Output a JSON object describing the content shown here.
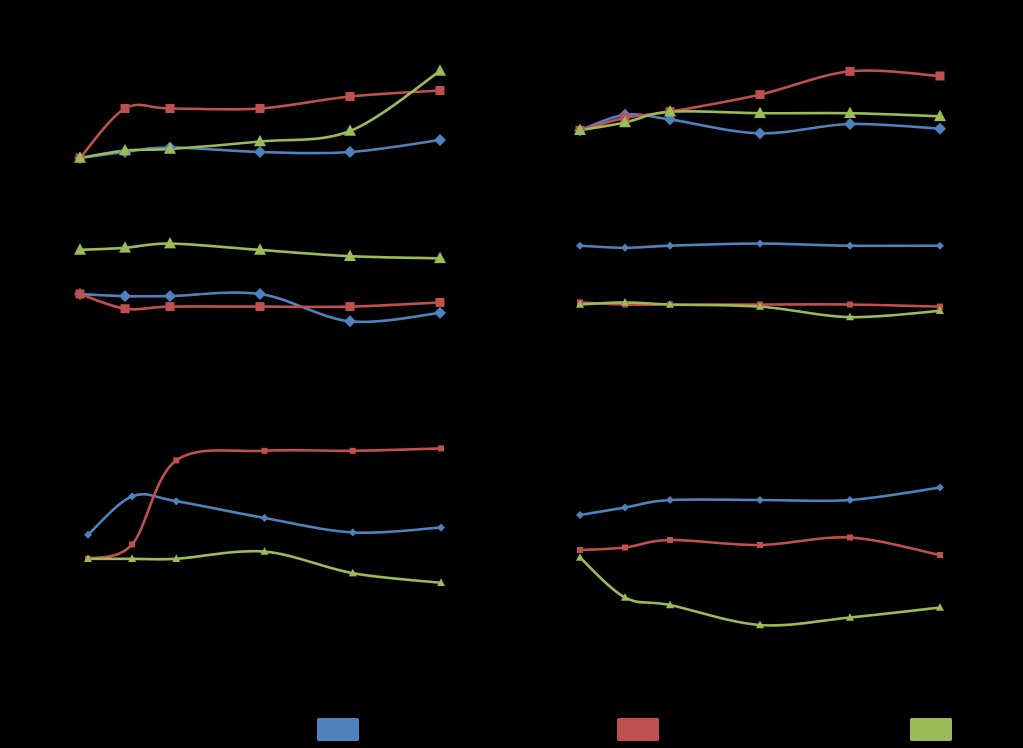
{
  "colors": {
    "background": "#000000",
    "blue": "#4F81BD",
    "red": "#C0504D",
    "green": "#9BBB59"
  },
  "legend": {
    "placement": "bottom",
    "entries": [
      {
        "name": "",
        "color": "#4F81BD"
      },
      {
        "name": "",
        "color": "#C0504D"
      },
      {
        "name": "",
        "color": "#9BBB59"
      }
    ]
  },
  "chart_data": [
    {
      "type": "line",
      "title": "",
      "x": [
        1,
        2,
        3,
        5,
        7,
        9
      ],
      "ylim": [
        0,
        100
      ],
      "grid": false,
      "series": [
        {
          "color": "#4F81BD",
          "marker": "diamond",
          "values": [
            28,
            32,
            35,
            32,
            32,
            40
          ]
        },
        {
          "color": "#C0504D",
          "marker": "square",
          "values": [
            28,
            61,
            61,
            61,
            69,
            73
          ]
        },
        {
          "color": "#9BBB59",
          "marker": "triangle",
          "values": [
            28,
            33,
            34,
            39,
            46,
            86
          ]
        }
      ]
    },
    {
      "type": "line",
      "title": "",
      "x": [
        1,
        2,
        3,
        5,
        7,
        9
      ],
      "ylim": [
        0,
        100
      ],
      "grid": false,
      "series": [
        {
          "color": "#4F81BD",
          "marker": "diamond",
          "values": [
            45,
            55,
            52,
            43,
            49,
            46
          ]
        },
        {
          "color": "#C0504D",
          "marker": "square",
          "values": [
            45,
            53,
            57,
            68,
            83,
            80
          ]
        },
        {
          "color": "#9BBB59",
          "marker": "triangle",
          "values": [
            45,
            50,
            57,
            56,
            56,
            54
          ]
        }
      ]
    },
    {
      "type": "line",
      "title": "",
      "x": [
        1,
        2,
        3,
        5,
        7,
        9
      ],
      "ylim": [
        0,
        100
      ],
      "grid": false,
      "series": [
        {
          "color": "#4F81BD",
          "marker": "diamond",
          "values": [
            60,
            59,
            59,
            60,
            47,
            51
          ]
        },
        {
          "color": "#C0504D",
          "marker": "square",
          "values": [
            60,
            53,
            54,
            54,
            54,
            56
          ]
        },
        {
          "color": "#9BBB59",
          "marker": "triangle",
          "values": [
            81,
            82,
            84,
            81,
            78,
            77
          ]
        }
      ]
    },
    {
      "type": "line",
      "title": "",
      "x": [
        1,
        2,
        3,
        5,
        7,
        9
      ],
      "ylim": [
        0,
        100
      ],
      "grid": false,
      "series": [
        {
          "color": "#4F81BD",
          "marker": "diamond",
          "values": [
            83,
            82,
            83,
            84,
            83,
            83
          ]
        },
        {
          "color": "#C0504D",
          "marker": "square",
          "values": [
            56,
            55,
            55,
            55,
            55,
            54
          ]
        },
        {
          "color": "#9BBB59",
          "marker": "triangle",
          "values": [
            55,
            56,
            55,
            54,
            49,
            52
          ]
        }
      ]
    },
    {
      "type": "line",
      "title": "",
      "x": [
        1,
        2,
        3,
        5,
        7,
        9
      ],
      "ylim": [
        0,
        100
      ],
      "grid": false,
      "series": [
        {
          "color": "#4F81BD",
          "marker": "diamond",
          "values": [
            48,
            64,
            62,
            55,
            49,
            51
          ]
        },
        {
          "color": "#C0504D",
          "marker": "square",
          "values": [
            38,
            44,
            79,
            83,
            83,
            84
          ]
        },
        {
          "color": "#9BBB59",
          "marker": "triangle",
          "values": [
            38,
            38,
            38,
            41,
            32,
            28
          ]
        }
      ]
    },
    {
      "type": "line",
      "title": "",
      "x": [
        1,
        2,
        3,
        5,
        7,
        9
      ],
      "ylim": [
        0,
        100
      ],
      "grid": false,
      "series": [
        {
          "color": "#4F81BD",
          "marker": "diamond",
          "values": [
            58,
            61,
            64,
            64,
            64,
            69
          ]
        },
        {
          "color": "#C0504D",
          "marker": "square",
          "values": [
            44,
            45,
            48,
            46,
            49,
            42
          ]
        },
        {
          "color": "#9BBB59",
          "marker": "triangle",
          "values": [
            41,
            25,
            22,
            14,
            17,
            21
          ]
        }
      ]
    }
  ]
}
